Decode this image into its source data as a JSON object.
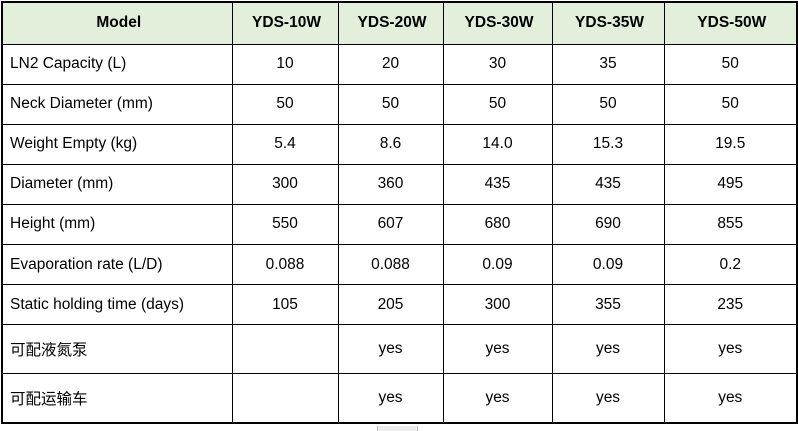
{
  "colors": {
    "header_bg": "#e2efda",
    "border": "#000000",
    "text": "#000000",
    "scrollbar": "#ececec"
  },
  "table": {
    "columns": [
      "Model",
      "YDS-10W",
      "YDS-20W",
      "YDS-30W",
      "YDS-35W",
      "YDS-50W"
    ],
    "rows": [
      {
        "label": "LN2 Capacity (L)",
        "values": [
          "10",
          "20",
          "30",
          "35",
          "50"
        ]
      },
      {
        "label": "Neck Diameter (mm)",
        "values": [
          "50",
          "50",
          "50",
          "50",
          "50"
        ]
      },
      {
        "label": "Weight Empty (kg)",
        "values": [
          "5.4",
          "8.6",
          "14.0",
          "15.3",
          "19.5"
        ]
      },
      {
        "label": "Diameter (mm)",
        "values": [
          "300",
          "360",
          "435",
          "435",
          "495"
        ]
      },
      {
        "label": "Height (mm)",
        "values": [
          "550",
          "607",
          "680",
          "690",
          "855"
        ]
      },
      {
        "label": "Evaporation rate (L/D)",
        "values": [
          "0.088",
          "0.088",
          "0.09",
          "0.09",
          "0.2"
        ]
      },
      {
        "label": "Static holding time (days)",
        "values": [
          "105",
          "205",
          "300",
          "355",
          "235"
        ]
      },
      {
        "label": "可配液氮泵",
        "values": [
          "",
          "yes",
          "yes",
          "yes",
          "yes"
        ]
      },
      {
        "label": "可配运输车",
        "values": [
          "",
          "yes",
          "yes",
          "yes",
          "yes"
        ]
      }
    ]
  }
}
